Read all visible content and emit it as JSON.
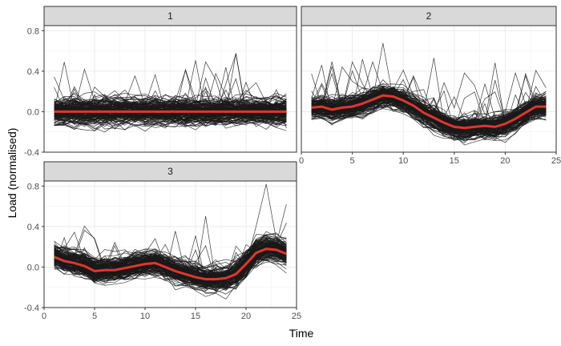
{
  "chart_data": {
    "type": "line",
    "xlabel": "Time",
    "ylabel": "Load (normalised)",
    "xlim": [
      0,
      25
    ],
    "ylim": [
      -0.4,
      0.85
    ],
    "x_ticks": [
      0,
      5,
      10,
      15,
      20,
      25
    ],
    "y_ticks": [
      -0.4,
      0.0,
      0.4,
      0.8
    ],
    "y_tick_labels": [
      "-0.4",
      "0.0",
      "0.4",
      "0.8"
    ],
    "grid": true,
    "facet_layout": "2 columns, 3 panels",
    "colors": {
      "member_lines": "#1a1a1a",
      "centroid_line": "#e0362c",
      "strip_fill": "#d9d9d9",
      "grid": "#ebebeb"
    },
    "x": [
      1,
      2,
      3,
      4,
      5,
      6,
      7,
      8,
      9,
      10,
      11,
      12,
      13,
      14,
      15,
      16,
      17,
      18,
      19,
      20,
      21,
      22,
      23,
      24
    ],
    "panels": [
      {
        "label": "1",
        "centroid": [
          0.0,
          0.0,
          0.0,
          0.0,
          0.0,
          0.0,
          0.0,
          0.0,
          0.0,
          0.0,
          0.0,
          0.0,
          0.0,
          0.0,
          0.0,
          0.0,
          0.0,
          0.0,
          0.0,
          0.0,
          0.0,
          0.0,
          0.0,
          0.0
        ],
        "band_spread": 0.08,
        "outlier_amplitude": 0.4
      },
      {
        "label": "2",
        "centroid": [
          0.04,
          0.05,
          0.02,
          0.04,
          0.05,
          0.08,
          0.12,
          0.16,
          0.15,
          0.11,
          0.06,
          -0.01,
          -0.06,
          -0.11,
          -0.15,
          -0.16,
          -0.15,
          -0.14,
          -0.15,
          -0.12,
          -0.07,
          -0.01,
          0.05,
          0.05
        ],
        "band_spread": 0.07,
        "outlier_amplitude": 0.45
      },
      {
        "label": "3",
        "centroid": [
          0.1,
          0.06,
          0.04,
          0.01,
          -0.04,
          -0.03,
          -0.03,
          -0.01,
          0.01,
          0.03,
          0.04,
          0.0,
          -0.04,
          -0.07,
          -0.1,
          -0.12,
          -0.12,
          -0.11,
          -0.07,
          0.03,
          0.14,
          0.18,
          0.17,
          0.13
        ],
        "band_spread": 0.08,
        "outlier_amplitude": 0.6
      }
    ]
  }
}
